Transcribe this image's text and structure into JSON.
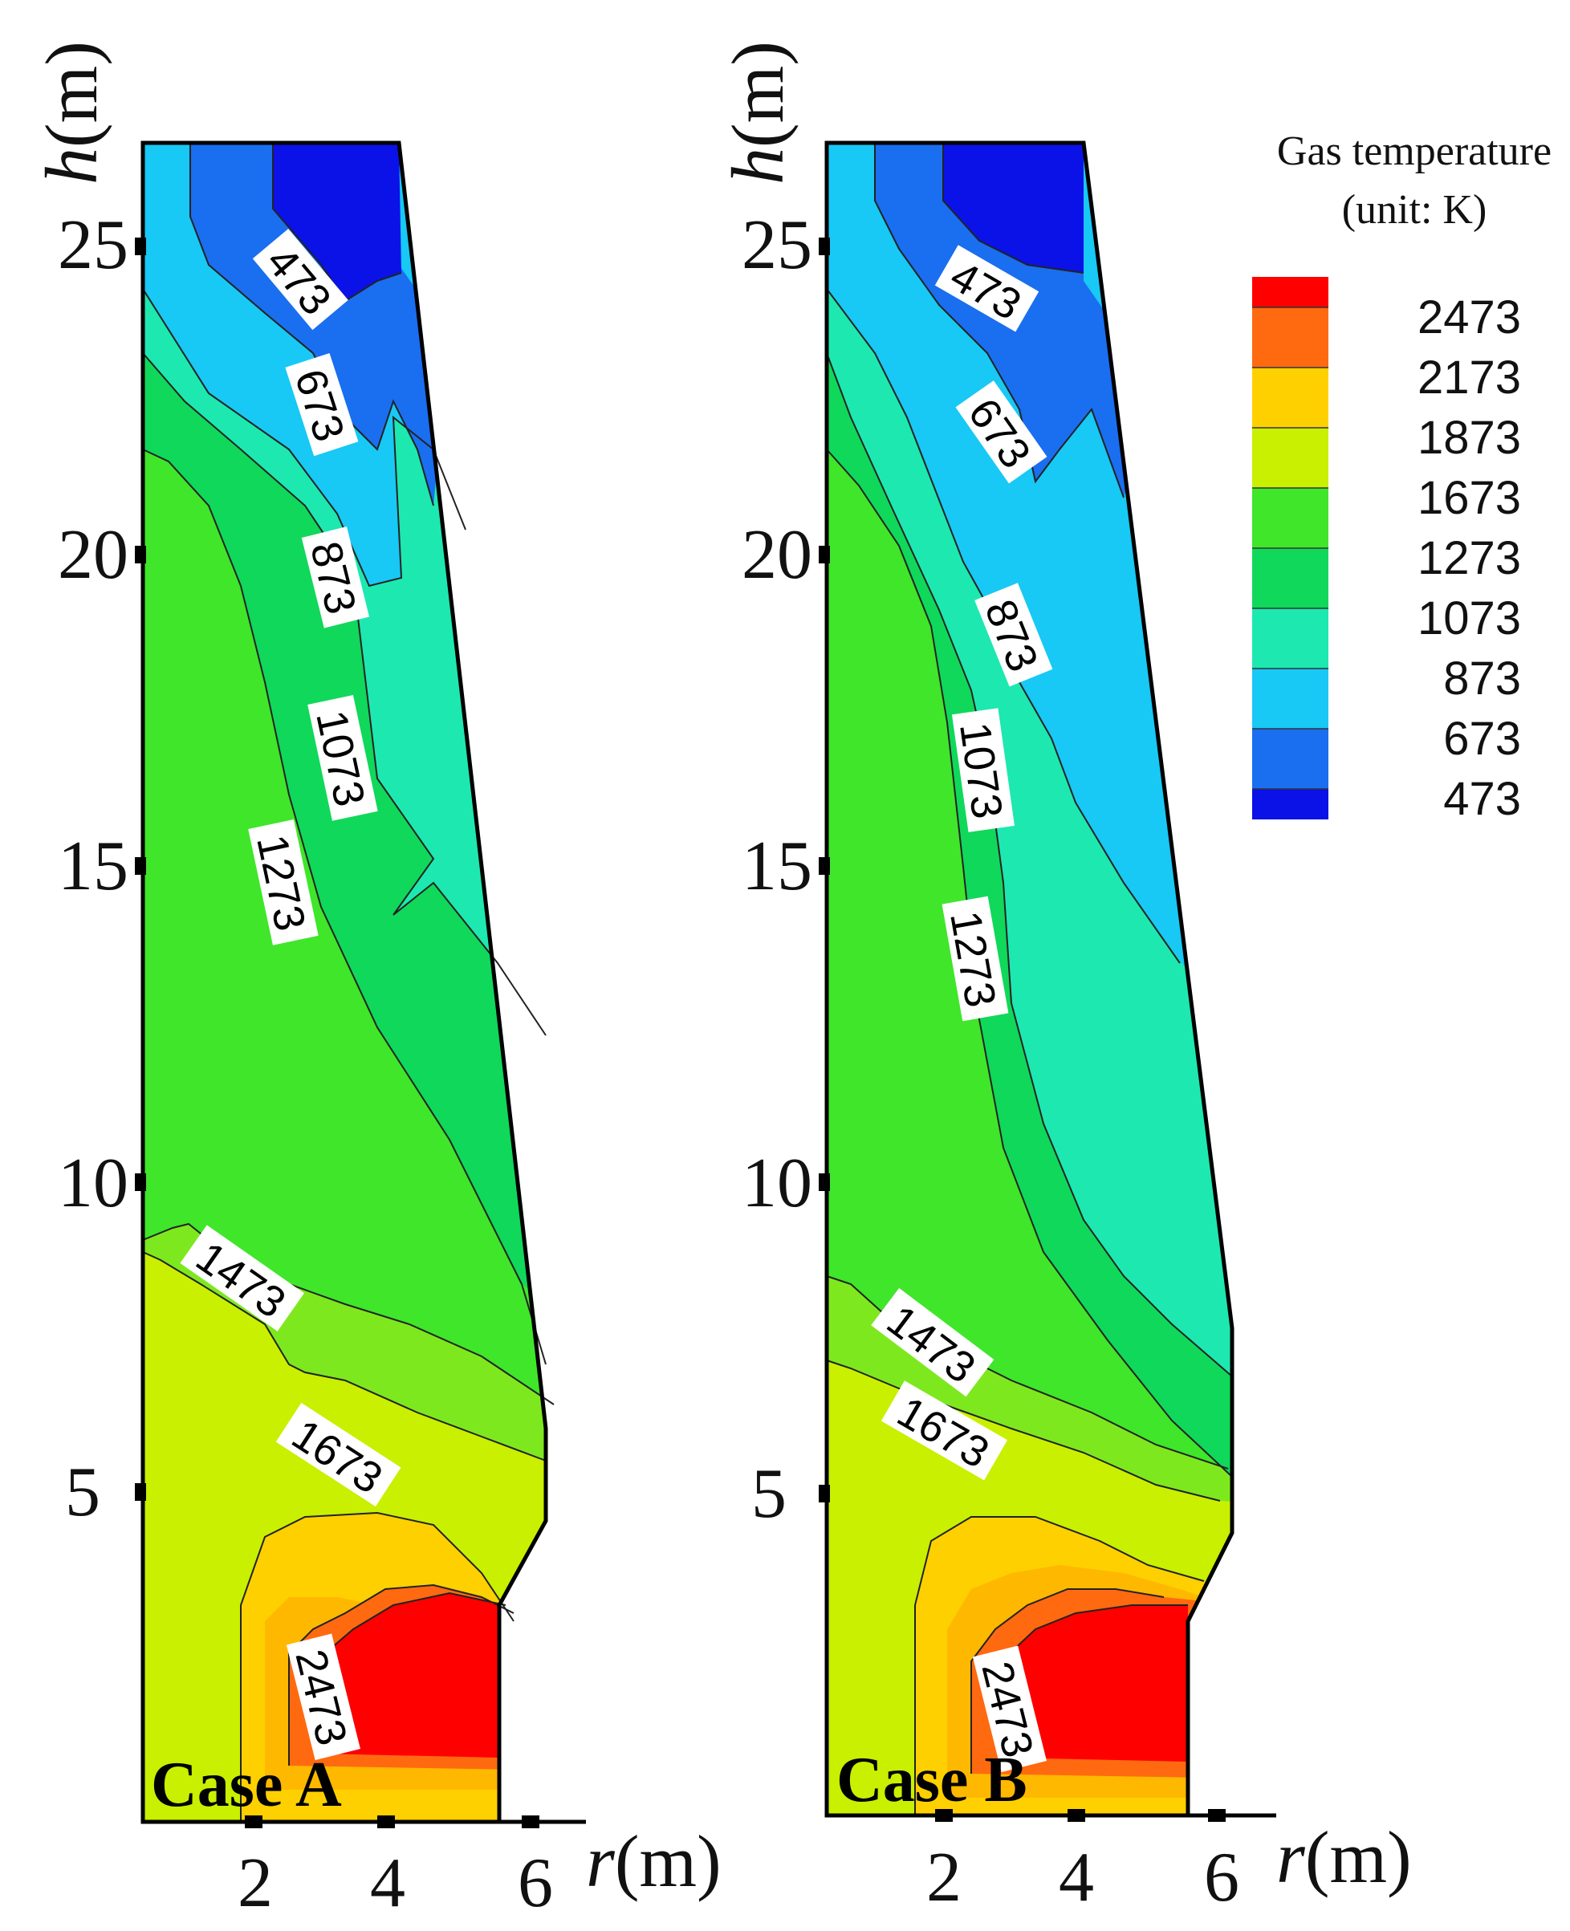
{
  "chart_data": {
    "type": "heatmap",
    "legend": {
      "title_line1": "Gas temperature",
      "title_line2": "(unit: K)",
      "levels": [
        2473,
        2173,
        1873,
        1673,
        1273,
        1073,
        873,
        673,
        473
      ],
      "colors": [
        "#ff0000",
        "#ff6a10",
        "#ffd000",
        "#c8f000",
        "#3fe62a",
        "#10d85a",
        "#1de8b0",
        "#18c8f5",
        "#1a6ef0",
        "#0a12e8"
      ]
    },
    "panels": [
      {
        "label": "Case A",
        "xlabel_var": "r",
        "xlabel_unit": "(m)",
        "ylabel_var": "h",
        "ylabel_unit": "(m)",
        "xticks": [
          2,
          4,
          6
        ],
        "yticks": [
          5,
          10,
          15,
          20,
          25
        ],
        "xlim": [
          0.1,
          6.6
        ],
        "ylim": [
          0,
          27
        ],
        "contour_labels": [
          "473",
          "673",
          "873",
          "1073",
          "1273",
          "1473",
          "1673",
          "2473"
        ]
      },
      {
        "label": "Case B",
        "xlabel_var": "r",
        "xlabel_unit": "(m)",
        "ylabel_var": "h",
        "ylabel_unit": "(m)",
        "xticks": [
          2,
          4,
          6
        ],
        "yticks": [
          5,
          10,
          15,
          20,
          25
        ],
        "xlim": [
          0.1,
          6.6
        ],
        "ylim": [
          0,
          27
        ],
        "contour_labels": [
          "473",
          "673",
          "873",
          "1073",
          "1273",
          "1473",
          "1673",
          "2473"
        ]
      }
    ]
  }
}
